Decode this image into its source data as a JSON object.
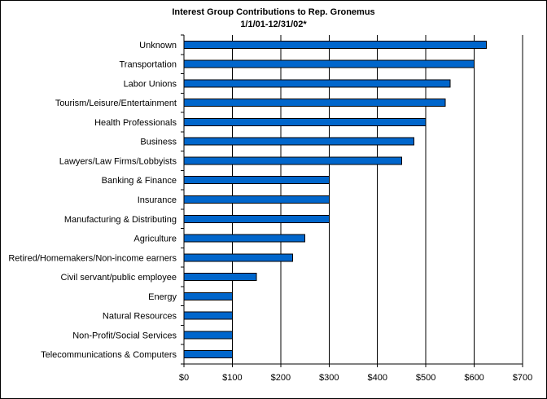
{
  "chart_data": {
    "type": "bar",
    "orientation": "horizontal",
    "title": "Interest Group Contributions to Rep. Gronemus",
    "subtitle": "1/1/01-12/31/02*",
    "xlabel": "",
    "ylabel": "",
    "xlim": [
      0,
      700
    ],
    "grid": true,
    "legend": false,
    "bar_color": "#0066CC",
    "categories": [
      "Unknown",
      "Transportation",
      "Labor Unions",
      "Tourism/Leisure/Entertainment",
      "Health Professionals",
      "Business",
      "Lawyers/Law Firms/Lobbyists",
      "Banking & Finance",
      "Insurance",
      "Manufacturing & Distributing",
      "Agriculture",
      "Retired/Homemakers/Non-income earners",
      "Civil servant/public employee",
      "Energy",
      "Natural Resources",
      "Non-Profit/Social Services",
      "Telecommunications & Computers"
    ],
    "values": [
      625,
      600,
      550,
      540,
      500,
      475,
      450,
      300,
      300,
      300,
      250,
      225,
      150,
      100,
      100,
      100,
      100
    ],
    "x_ticks": [
      0,
      100,
      200,
      300,
      400,
      500,
      600,
      700
    ],
    "x_tick_labels": [
      "$0",
      "$100",
      "$200",
      "$300",
      "$400",
      "$500",
      "$600",
      "$700"
    ]
  }
}
